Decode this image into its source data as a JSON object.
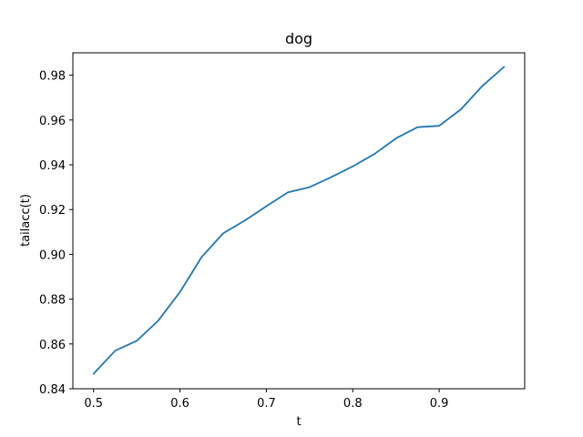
{
  "chart_data": {
    "type": "line",
    "title": "dog",
    "xlabel": "t",
    "ylabel": "tailacc(t)",
    "xlim": [
      0.476,
      0.999
    ],
    "ylim": [
      0.84,
      0.99
    ],
    "xticks": [
      0.5,
      0.6,
      0.7,
      0.8,
      0.9
    ],
    "xtick_labels": [
      "0.5",
      "0.6",
      "0.7",
      "0.8",
      "0.9"
    ],
    "yticks": [
      0.84,
      0.86,
      0.88,
      0.9,
      0.92,
      0.94,
      0.96,
      0.98
    ],
    "ytick_labels": [
      "0.84",
      "0.86",
      "0.88",
      "0.90",
      "0.92",
      "0.94",
      "0.96",
      "0.98"
    ],
    "grid": false,
    "series": [
      {
        "color": "#1f77b4",
        "x": [
          0.5,
          0.525,
          0.55,
          0.575,
          0.6,
          0.625,
          0.65,
          0.675,
          0.7,
          0.725,
          0.75,
          0.775,
          0.8,
          0.825,
          0.85,
          0.875,
          0.9,
          0.925,
          0.95,
          0.975
        ],
        "y": [
          0.8467,
          0.857,
          0.8614,
          0.8705,
          0.8832,
          0.8988,
          0.9094,
          0.9151,
          0.9215,
          0.9277,
          0.93,
          0.9345,
          0.9393,
          0.9448,
          0.9518,
          0.9568,
          0.9574,
          0.9647,
          0.9752,
          0.9837
        ]
      }
    ]
  }
}
